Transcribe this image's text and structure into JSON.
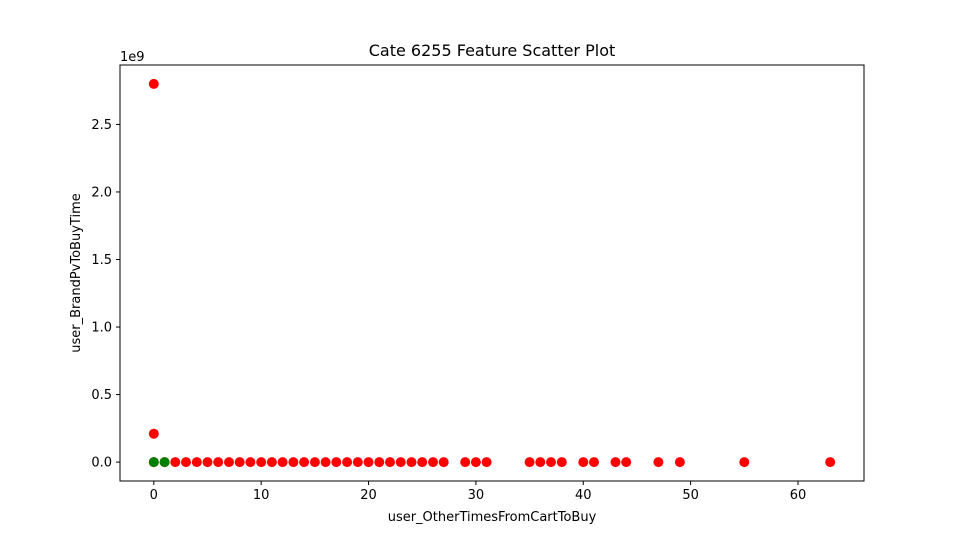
{
  "chart_data": {
    "type": "scatter",
    "title": "Cate 6255 Feature Scatter Plot",
    "xlabel": "user_OtherTimesFromCartToBuy",
    "ylabel": "user_BrandPvToBuyTime",
    "y_offset_text": "1e9",
    "xlim": [
      -3.15,
      66.15
    ],
    "ylim": [
      -0.14,
      2.94
    ],
    "y_units_multiplier": 1000000000,
    "x_ticks": [
      0,
      10,
      20,
      30,
      40,
      50,
      60
    ],
    "x_tick_labels": [
      "0",
      "10",
      "20",
      "30",
      "40",
      "50",
      "60"
    ],
    "y_ticks": [
      0.0,
      0.5,
      1.0,
      1.5,
      2.0,
      2.5
    ],
    "y_tick_labels": [
      "0.0",
      "0.5",
      "1.0",
      "1.5",
      "2.0",
      "2.5"
    ],
    "grid": false,
    "series": [
      {
        "color": "#ff0000",
        "points": [
          [
            0,
            2.8
          ],
          [
            0,
            0.21
          ],
          [
            0,
            0
          ],
          [
            1,
            0
          ],
          [
            2,
            0
          ],
          [
            3,
            0
          ],
          [
            4,
            0
          ],
          [
            5,
            0
          ],
          [
            6,
            0
          ],
          [
            7,
            0
          ],
          [
            8,
            0
          ],
          [
            9,
            0
          ],
          [
            10,
            0
          ],
          [
            11,
            0
          ],
          [
            12,
            0
          ],
          [
            13,
            0
          ],
          [
            14,
            0
          ],
          [
            15,
            0
          ],
          [
            16,
            0
          ],
          [
            17,
            0
          ],
          [
            18,
            0
          ],
          [
            19,
            0
          ],
          [
            20,
            0
          ],
          [
            21,
            0
          ],
          [
            22,
            0
          ],
          [
            23,
            0
          ],
          [
            24,
            0
          ],
          [
            25,
            0
          ],
          [
            26,
            0
          ],
          [
            27,
            0
          ],
          [
            29,
            0
          ],
          [
            30,
            0
          ],
          [
            31,
            0
          ],
          [
            35,
            0
          ],
          [
            36,
            0
          ],
          [
            37,
            0
          ],
          [
            38,
            0
          ],
          [
            40,
            0
          ],
          [
            41,
            0
          ],
          [
            43,
            0
          ],
          [
            44,
            0
          ],
          [
            47,
            0
          ],
          [
            49,
            0
          ],
          [
            55,
            0
          ],
          [
            63,
            0
          ]
        ]
      },
      {
        "color": "#008000",
        "points": [
          [
            0,
            0
          ],
          [
            1,
            0
          ]
        ]
      }
    ]
  }
}
